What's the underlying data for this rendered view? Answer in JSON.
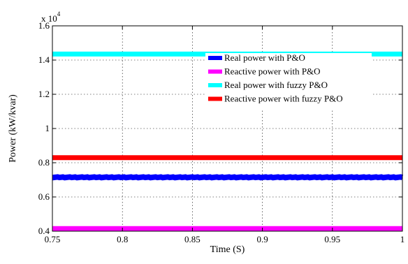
{
  "chart_data": {
    "type": "line",
    "title": "",
    "xlabel": "Time (S)",
    "ylabel": "Power (kW/kvar)",
    "xlim": [
      0.75,
      1.0
    ],
    "ylim": [
      4000,
      16000
    ],
    "y_exponent_label": "x 10",
    "y_exponent_power": "4",
    "x_ticks": [
      {
        "value": 0.75,
        "label": "0.75"
      },
      {
        "value": 0.8,
        "label": "0.8"
      },
      {
        "value": 0.85,
        "label": "0.85"
      },
      {
        "value": 0.9,
        "label": "0.9"
      },
      {
        "value": 0.95,
        "label": "0.95"
      },
      {
        "value": 1.0,
        "label": "1"
      }
    ],
    "y_ticks": [
      {
        "value": 4000,
        "label": "0.4"
      },
      {
        "value": 6000,
        "label": "0.6"
      },
      {
        "value": 8000,
        "label": "0.8"
      },
      {
        "value": 10000,
        "label": "1"
      },
      {
        "value": 12000,
        "label": "1.2"
      },
      {
        "value": 14000,
        "label": "1.4"
      },
      {
        "value": 16000,
        "label": "1.6"
      }
    ],
    "grid": true,
    "legend_position": "top-right",
    "series": [
      {
        "name": "Real power with P&O",
        "color": "#0000ff",
        "x": [
          0.75,
          1.0
        ],
        "y": [
          7150,
          7150
        ],
        "noisy": true
      },
      {
        "name": "Reactive power with P&O",
        "color": "#ff00ff",
        "x": [
          0.75,
          1.0
        ],
        "y": [
          4150,
          4150
        ],
        "noisy": false
      },
      {
        "name": "Real power with fuzzy P&O",
        "color": "#00ffff",
        "x": [
          0.75,
          1.0
        ],
        "y": [
          14350,
          14350
        ],
        "noisy": false
      },
      {
        "name": "Reactive power with fuzzy P&O",
        "color": "#ff0000",
        "x": [
          0.75,
          1.0
        ],
        "y": [
          8300,
          8300
        ],
        "noisy": false
      }
    ]
  }
}
